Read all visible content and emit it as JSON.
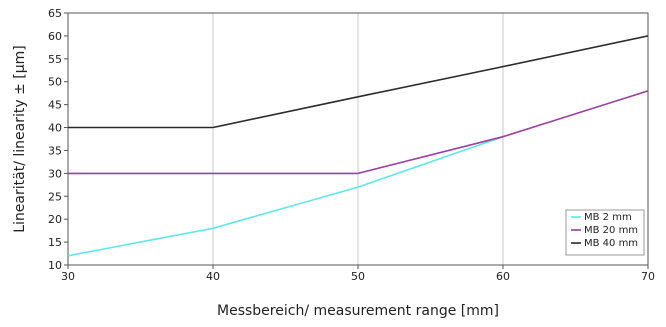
{
  "chart_data": {
    "type": "line",
    "xlabel": "Messbereich/ measurement range [mm]",
    "ylabel": "Linearität/ linearity ± [µm]",
    "xlim": [
      30,
      70
    ],
    "ylim": [
      10,
      65
    ],
    "x_ticks": [
      30,
      40,
      50,
      60,
      70
    ],
    "y_ticks": [
      10,
      15,
      20,
      25,
      30,
      35,
      40,
      45,
      50,
      55,
      60,
      65
    ],
    "grid": "vertical",
    "legend_position": "bottom-right",
    "series": [
      {
        "name": "MB 2 mm",
        "color": "#5fe8e8",
        "x": [
          30,
          40,
          50,
          60
        ],
        "y": [
          12,
          18,
          27,
          38
        ]
      },
      {
        "name": "MB 20 mm",
        "color": "#9b3fa0",
        "x": [
          30,
          40,
          50,
          60,
          70
        ],
        "y": [
          30,
          30,
          30,
          38,
          48
        ]
      },
      {
        "name": "MB 40 mm",
        "color": "#2b2b2b",
        "x": [
          30,
          40,
          50,
          60,
          70
        ],
        "y": [
          40,
          40,
          46.7,
          53.3,
          60
        ]
      }
    ]
  }
}
